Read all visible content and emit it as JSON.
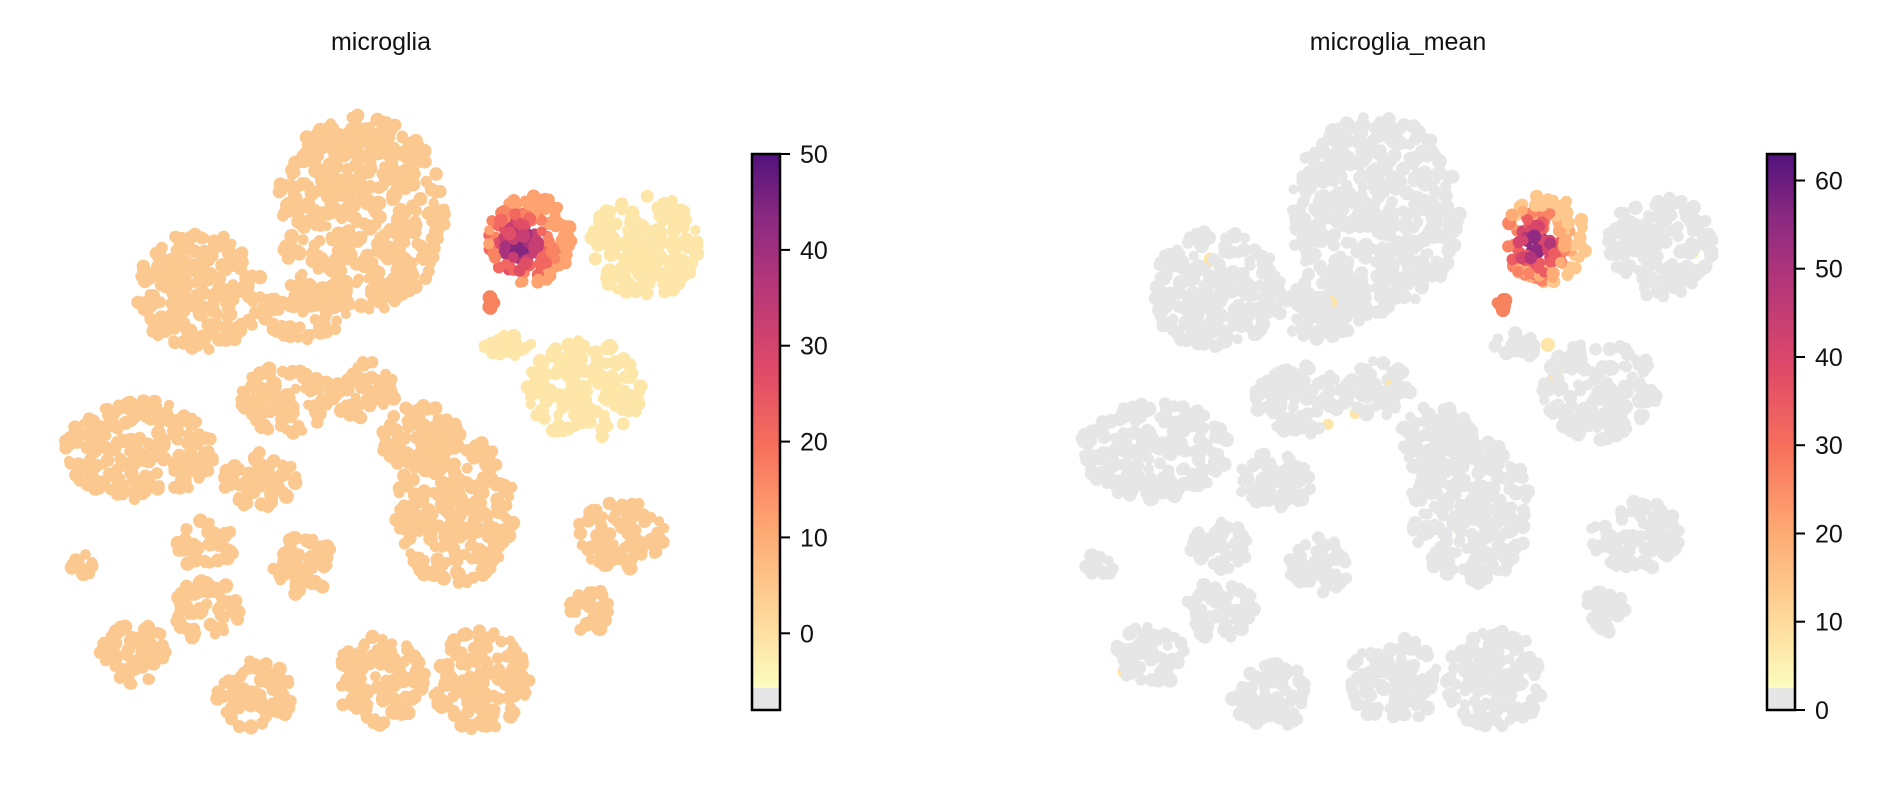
{
  "chart_data": [
    {
      "type": "scatter",
      "title": "microglia",
      "xlabel": "",
      "ylabel": "",
      "grid": false,
      "colorbar": {
        "colormap": "magma_r",
        "range": [
          -8,
          50
        ],
        "ticks": [
          0,
          10,
          20,
          30,
          40,
          50
        ],
        "tick_labels": [
          "0",
          "10",
          "20",
          "30",
          "40",
          "50"
        ],
        "under_color": "#e6e6e6"
      },
      "background_value": 2,
      "highlight_cluster_values": [
        50,
        44,
        38,
        32,
        26,
        20,
        15,
        10
      ],
      "highlight_cluster": "top-right"
    },
    {
      "type": "scatter",
      "title": "microglia_mean",
      "xlabel": "",
      "ylabel": "",
      "grid": false,
      "colorbar": {
        "colormap": "magma_r",
        "range": [
          0,
          63
        ],
        "ticks": [
          0,
          10,
          20,
          30,
          40,
          50,
          60
        ],
        "tick_labels": [
          "0",
          "10",
          "20",
          "30",
          "40",
          "50",
          "60"
        ],
        "under_color": "#e6e6e6"
      },
      "background_value": null,
      "highlight_cluster_values": [
        62,
        55,
        48,
        40,
        33,
        25,
        18,
        12
      ],
      "highlight_cluster": "top-right"
    }
  ],
  "colors": {
    "background_points": "#e6e6e6",
    "low_orange": "#fbc98f",
    "pale_yellow": "#fde6a8",
    "salmon": "#f6835e",
    "dark_purple": "#4a1276"
  }
}
